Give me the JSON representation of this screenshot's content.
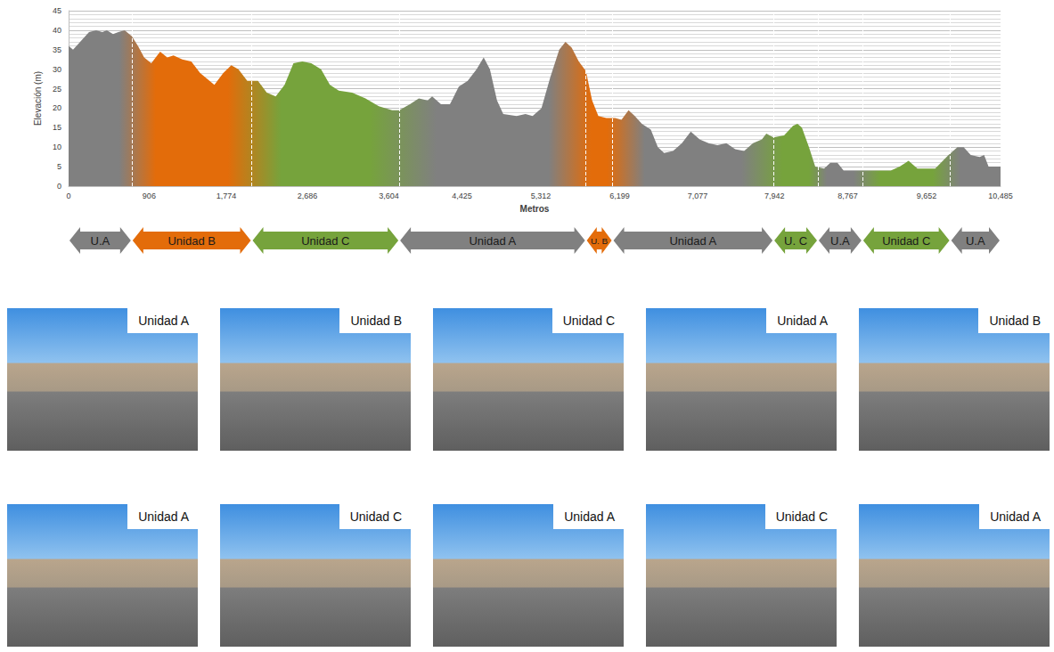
{
  "chart_data": {
    "type": "area",
    "y_label": "Elevación (m)",
    "x_label": "Metros",
    "x": [
      0,
      50,
      130,
      230,
      310,
      380,
      430,
      500,
      560,
      630,
      710,
      780,
      850,
      930,
      1030,
      1110,
      1180,
      1280,
      1380,
      1480,
      1640,
      1740,
      1830,
      1910,
      2010,
      2130,
      2230,
      2330,
      2430,
      2530,
      2630,
      2730,
      2840,
      2940,
      3040,
      3190,
      3340,
      3490,
      3640,
      3720,
      3840,
      3940,
      4040,
      4090,
      4190,
      4290,
      4390,
      4490,
      4590,
      4670,
      4740,
      4820,
      4890,
      5040,
      5140,
      5220,
      5320,
      5420,
      5520,
      5590,
      5660,
      5740,
      5820,
      5890,
      5960,
      6050,
      6150,
      6220,
      6300,
      6370,
      6450,
      6550,
      6630,
      6700,
      6800,
      6900,
      7000,
      7100,
      7200,
      7300,
      7400,
      7500,
      7600,
      7700,
      7800,
      7850,
      7930,
      8050,
      8150,
      8200,
      8250,
      8330,
      8400,
      8500,
      8570,
      8650,
      8720,
      8850,
      9250,
      9350,
      9450,
      9550,
      9750,
      9900,
      10000,
      10070,
      10150,
      10250,
      10300,
      10350,
      10485
    ],
    "values": [
      36,
      35,
      37,
      39.5,
      40,
      39.5,
      40,
      39,
      39.5,
      40,
      38.5,
      36,
      33,
      31.5,
      34.5,
      33,
      33.5,
      32.5,
      32,
      29,
      26,
      29,
      31,
      30,
      27,
      27,
      24,
      23,
      26,
      31.5,
      32,
      31.5,
      30,
      26,
      24.5,
      24,
      22.5,
      20.5,
      19.5,
      19.5,
      21,
      22.5,
      22,
      23,
      21,
      21,
      25.5,
      27,
      30,
      33,
      30,
      22,
      18.5,
      18,
      18.5,
      18,
      20,
      28,
      35,
      37,
      35.5,
      32,
      29.5,
      22,
      18,
      17.5,
      17.5,
      17,
      19.5,
      18,
      16,
      14.5,
      10,
      8.5,
      9,
      11,
      14,
      12,
      11,
      10.5,
      11,
      9.5,
      9,
      11,
      12,
      13.5,
      12.5,
      13,
      15.5,
      16,
      15,
      10,
      5,
      4.5,
      6,
      6,
      4,
      4,
      4,
      5,
      6.5,
      4.5,
      4.5,
      8,
      10,
      10,
      8,
      7.5,
      8,
      5,
      5
    ],
    "xlim": [
      0,
      10485
    ],
    "xticks": [
      0,
      906,
      1774,
      2686,
      3604,
      4425,
      5312,
      6199,
      7077,
      7942,
      8767,
      9652,
      10485
    ],
    "ylim": [
      0,
      45
    ],
    "yticks": [
      0,
      5,
      10,
      15,
      20,
      25,
      30,
      35,
      40,
      45
    ],
    "grid": true,
    "segments": [
      {
        "label": "U.A",
        "start": 0,
        "end": 710,
        "color": "#808080"
      },
      {
        "label": "Unidad B",
        "start": 710,
        "end": 2060,
        "color": "#e36c0a"
      },
      {
        "label": "Unidad C",
        "start": 2060,
        "end": 3720,
        "color": "#76a33c"
      },
      {
        "label": "Unidad A",
        "start": 3720,
        "end": 5820,
        "color": "#808080"
      },
      {
        "label": "U. B",
        "start": 5820,
        "end": 6120,
        "color": "#e36c0a"
      },
      {
        "label": "Unidad A",
        "start": 6120,
        "end": 7930,
        "color": "#808080"
      },
      {
        "label": "U. C",
        "start": 7930,
        "end": 8430,
        "color": "#76a33c"
      },
      {
        "label": "U.A",
        "start": 8430,
        "end": 8930,
        "color": "#808080"
      },
      {
        "label": "Unidad C",
        "start": 8930,
        "end": 9920,
        "color": "#76a33c"
      },
      {
        "label": "U.A",
        "start": 9920,
        "end": 10485,
        "color": "#808080"
      }
    ]
  },
  "photos": [
    "Unidad A",
    "Unidad B",
    "Unidad C",
    "Unidad A",
    "Unidad B",
    "Unidad A",
    "Unidad C",
    "Unidad A",
    "Unidad C",
    "Unidad A"
  ]
}
